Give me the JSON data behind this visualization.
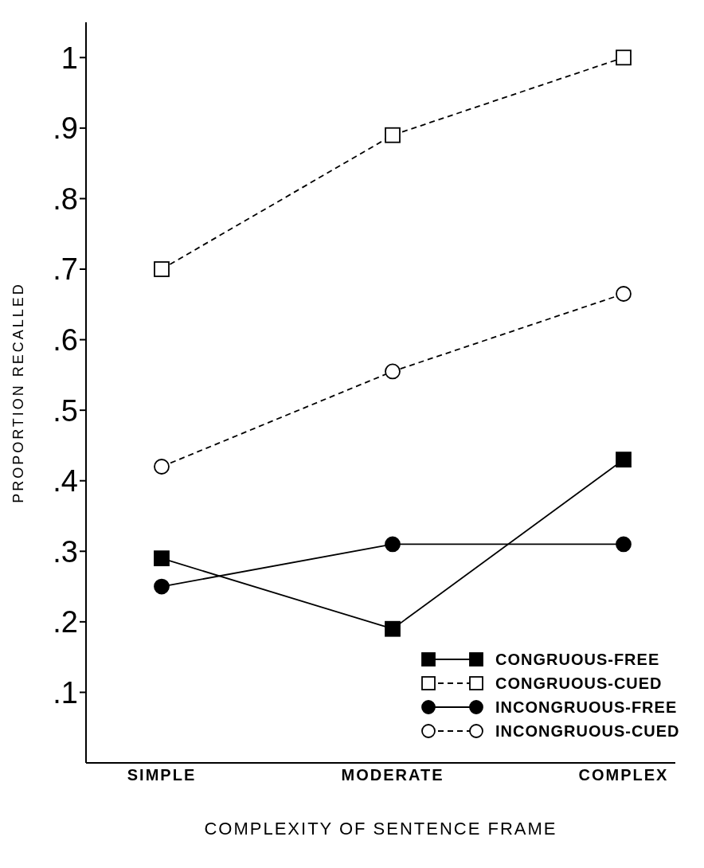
{
  "chart_data": {
    "type": "line",
    "xlabel": "COMPLEXITY OF  SENTENCE FRAME",
    "ylabel": "PROPORTION RECALLED",
    "categories": [
      "SIMPLE",
      "MODERATE",
      "COMPLEX"
    ],
    "series": [
      {
        "name": "CONGRUOUS-FREE",
        "color": "#000000",
        "values": [
          0.29,
          0.19,
          0.43
        ],
        "marker": "square",
        "line_style": "solid"
      },
      {
        "name": "CONGRUOUS-CUED",
        "color": "#000000",
        "values": [
          0.7,
          0.89,
          1.0
        ],
        "marker": "square",
        "line_style": "dashed"
      },
      {
        "name": "INCONGRUOUS-FREE",
        "color": "#000000",
        "values": [
          0.25,
          0.31,
          0.31
        ],
        "marker": "circle",
        "line_style": "solid"
      },
      {
        "name": "INCONGRUOUS-CUED",
        "color": "#000000",
        "values": [
          0.42,
          0.555,
          0.665
        ],
        "marker": "circle",
        "line_style": "dashed"
      }
    ],
    "ylim": [
      0,
      1.05
    ],
    "yticks": [
      {
        "value": 0.1,
        "label": ".1"
      },
      {
        "value": 0.2,
        "label": ".2"
      },
      {
        "value": 0.3,
        "label": ".3"
      },
      {
        "value": 0.4,
        "label": ".4"
      },
      {
        "value": 0.5,
        "label": ".5"
      },
      {
        "value": 0.6,
        "label": ".6"
      },
      {
        "value": 0.7,
        "label": ".7"
      },
      {
        "value": 0.8,
        "label": ".8"
      },
      {
        "value": 0.9,
        "label": ".9"
      },
      {
        "value": 1,
        "label": "1"
      }
    ],
    "grid": false,
    "legend": "bottom right"
  }
}
